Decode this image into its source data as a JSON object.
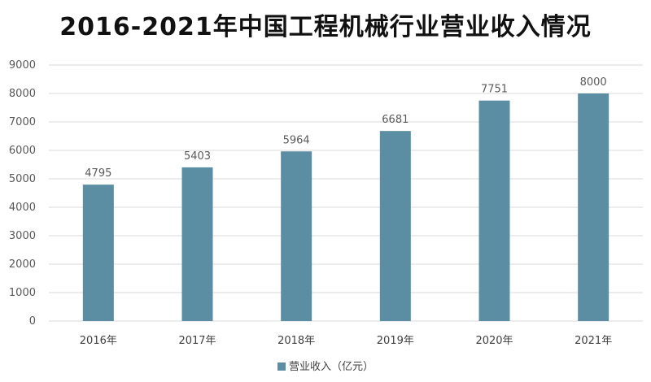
{
  "chart_data": {
    "type": "bar",
    "title": "2016-2021年中国工程机械行业营业收入情况",
    "categories": [
      "2016年",
      "2017年",
      "2018年",
      "2019年",
      "2020年",
      "2021年"
    ],
    "series": [
      {
        "name": "营业收入（亿元）",
        "values": [
          4795,
          5403,
          5964,
          6681,
          7751,
          8000
        ]
      }
    ],
    "data_labels": [
      "4795",
      "5403",
      "5964",
      "6681",
      "7751",
      "8000"
    ],
    "ylim": [
      0,
      9000
    ],
    "yticks": [
      "0",
      "1000",
      "2000",
      "3000",
      "4000",
      "5000",
      "6000",
      "7000",
      "8000",
      "9000"
    ],
    "xlabel": "",
    "ylabel": "",
    "grid": true,
    "legend_position": "bottom",
    "bar_color": "#5b8da3",
    "grid_color": "#d9d9d9"
  }
}
